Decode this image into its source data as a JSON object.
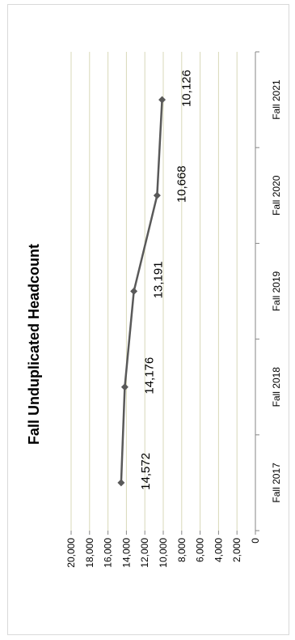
{
  "chart_data": {
    "type": "line",
    "orientation": "rotated-90-clockwise",
    "title": "Fall Unduplicated Headcount",
    "categories": [
      "Fall 2017",
      "Fall 2018",
      "Fall 2019",
      "Fall 2020",
      "Fall 2021"
    ],
    "series": [
      {
        "values": [
          14572,
          14176,
          13191,
          10668,
          10126
        ],
        "labels": [
          "14,572",
          "14,176",
          "13,191",
          "10,668",
          "10,126"
        ],
        "color": "#595959"
      }
    ],
    "value_ticks": [
      "0",
      "2,000",
      "4,000",
      "6,000",
      "8,000",
      "10,000",
      "12,000",
      "14,000",
      "16,000",
      "18,000",
      "20,000"
    ],
    "ylim": [
      0,
      20000
    ],
    "grid": true,
    "gridline_color": "#d8d8b8",
    "legend": "none"
  }
}
